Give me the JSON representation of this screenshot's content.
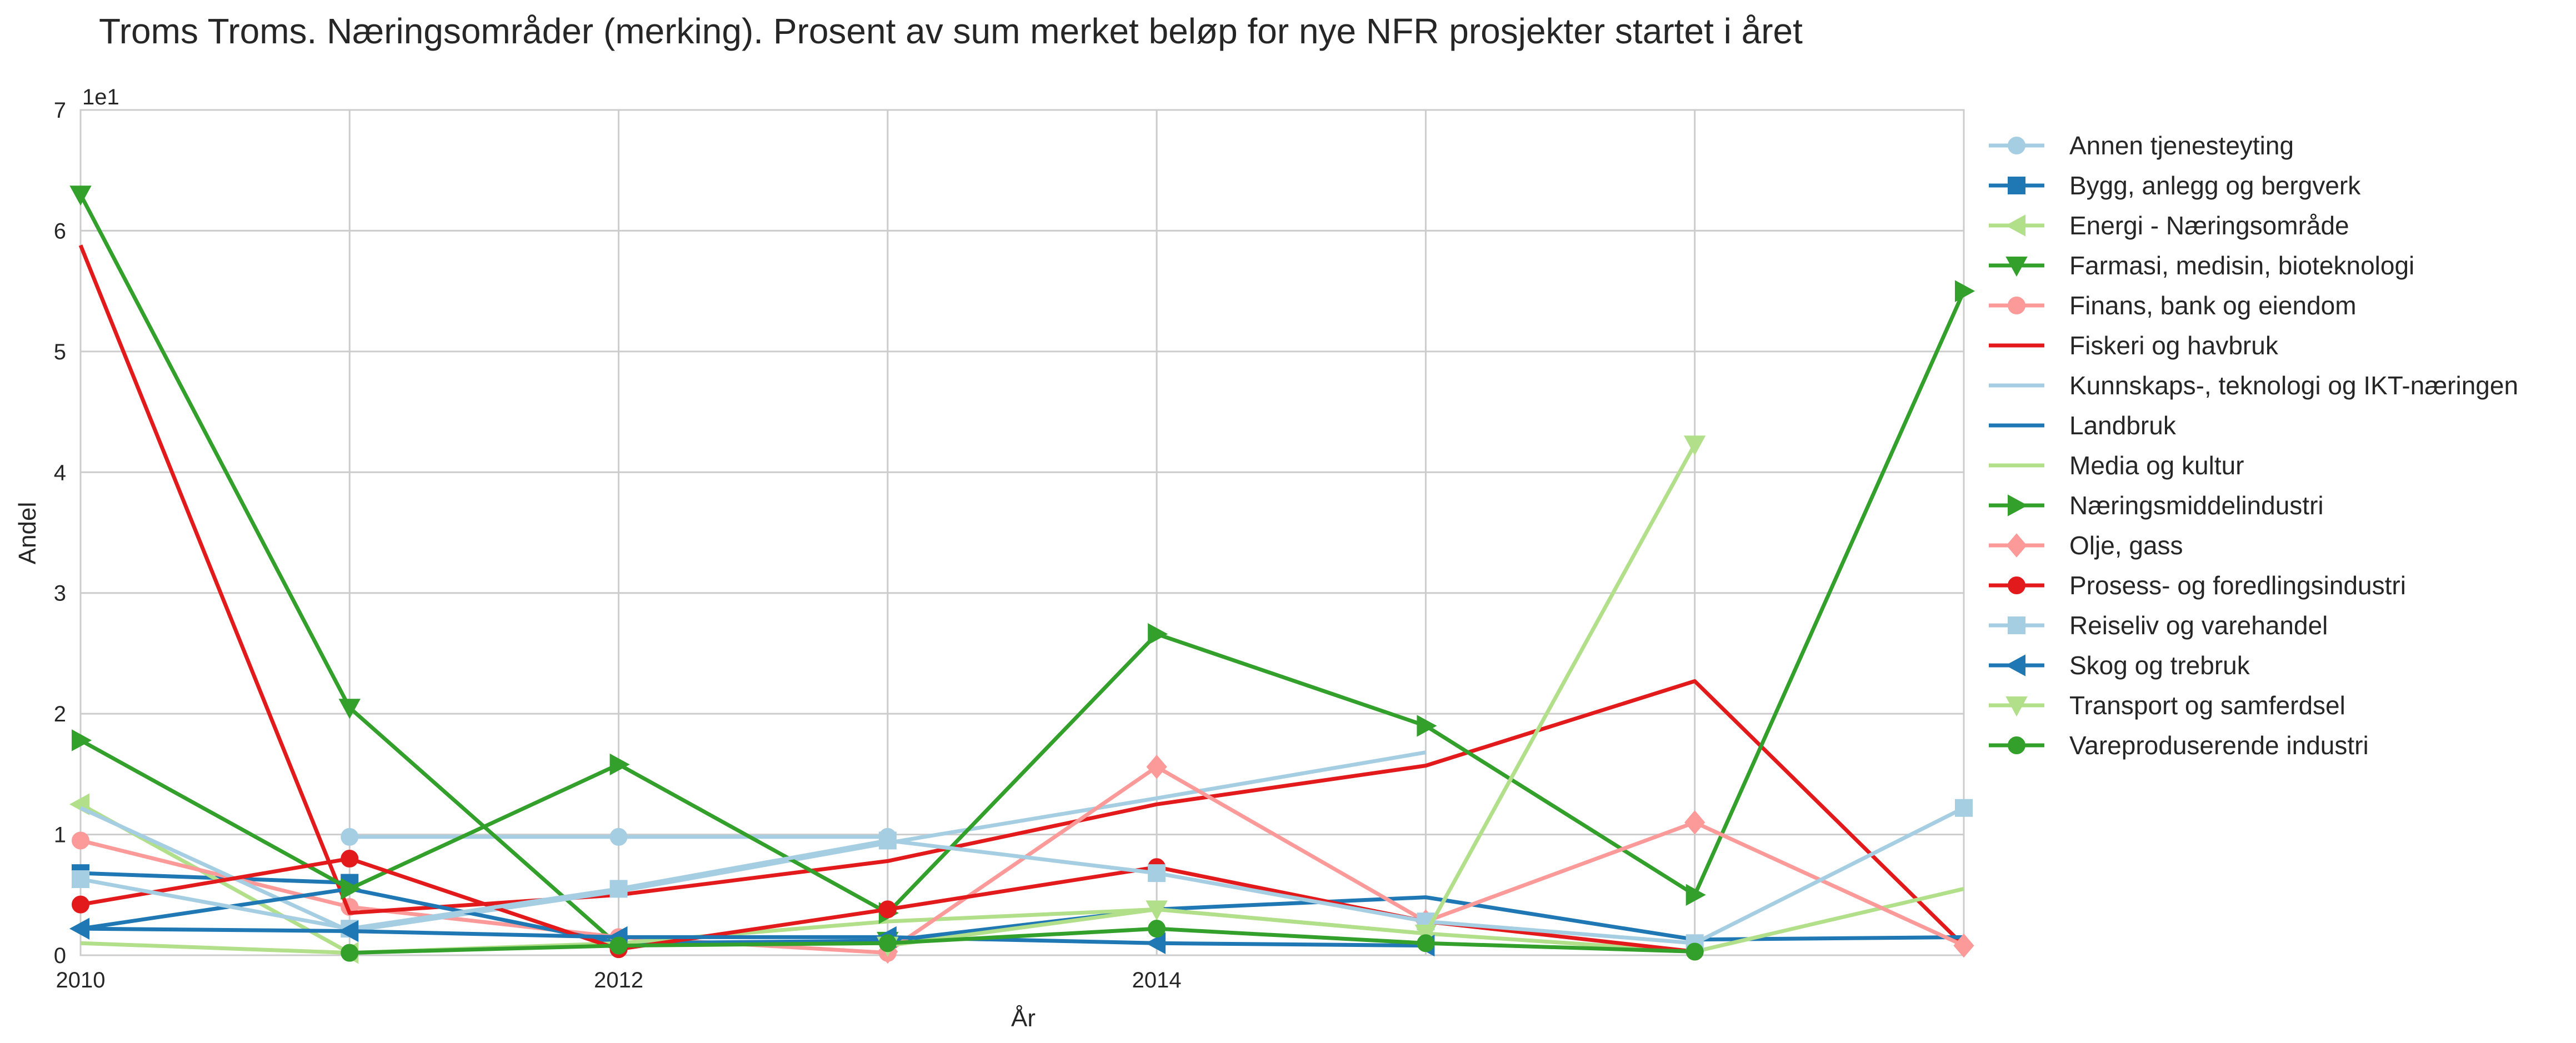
{
  "chart_data": {
    "type": "line",
    "title": "Troms Troms. Næringsområder (merking). Prosent av sum merket beløp for nye NFR prosjekter startet i året",
    "xlabel": "År",
    "ylabel": "Andel",
    "y_scale_label": "1e1",
    "xlim": [
      2010,
      2017
    ],
    "ylim": [
      0,
      7
    ],
    "x_tick_labels": [
      "2010",
      "2012",
      "2014"
    ],
    "y_tick_labels": [
      "0",
      "1",
      "2",
      "3",
      "4",
      "5",
      "6",
      "7"
    ],
    "grid": true,
    "legend_position": "outside right",
    "x": [
      2010,
      2011,
      2012,
      2013,
      2014,
      2015,
      2016,
      2017
    ],
    "series": [
      {
        "name": "Annen tjenesteyting",
        "color": "#a6cee3",
        "marker": "circle",
        "values": [
          null,
          0.98,
          0.98,
          0.98,
          null,
          null,
          null,
          null
        ]
      },
      {
        "name": "Bygg, anlegg og bergverk",
        "color": "#1f78b4",
        "marker": "square",
        "values": [
          0.68,
          0.6,
          null,
          null,
          null,
          null,
          null,
          null
        ]
      },
      {
        "name": "Energi - Næringsområde",
        "color": "#b2df8a",
        "marker": "triangle-left",
        "values": [
          1.25,
          0.02,
          null,
          null,
          null,
          null,
          null,
          null
        ]
      },
      {
        "name": "Farmasi, medisin, bioteknologi",
        "color": "#33a02c",
        "marker": "triangle-down",
        "values": [
          6.3,
          2.05,
          0.08,
          0.12,
          null,
          null,
          null,
          null
        ]
      },
      {
        "name": "Finans, bank og eiendom",
        "color": "#fb9a99",
        "marker": "circle",
        "values": [
          0.95,
          0.4,
          0.15,
          0.02,
          null,
          null,
          null,
          null
        ]
      },
      {
        "name": "Fiskeri og havbruk",
        "color": "#e31a1c",
        "marker": "none",
        "values": [
          5.88,
          0.35,
          0.5,
          0.78,
          1.25,
          1.57,
          2.27,
          0.08
        ]
      },
      {
        "name": "Kunnskaps-, teknologi og IKT-næringen",
        "color": "#a6cee3",
        "marker": "none",
        "values": [
          1.22,
          0.2,
          0.53,
          0.93,
          1.3,
          1.68,
          null,
          null
        ]
      },
      {
        "name": "Landbruk",
        "color": "#1f78b4",
        "marker": "none",
        "values": [
          0.22,
          0.55,
          0.1,
          0.12,
          0.38,
          0.48,
          0.13,
          0.15
        ]
      },
      {
        "name": "Media og kultur",
        "color": "#b2df8a",
        "marker": "none",
        "values": [
          0.1,
          0.02,
          0.1,
          0.28,
          0.38,
          0.18,
          0.03,
          0.55
        ]
      },
      {
        "name": "Næringsmiddelindustri",
        "color": "#33a02c",
        "marker": "triangle-right",
        "values": [
          1.78,
          0.55,
          1.58,
          0.35,
          2.66,
          1.9,
          0.5,
          5.5
        ]
      },
      {
        "name": "Olje, gass",
        "color": "#fb9a99",
        "marker": "diamond",
        "values": [
          null,
          null,
          null,
          0.03,
          1.56,
          0.28,
          1.1,
          0.08
        ]
      },
      {
        "name": "Prosess- og foredlingsindustri",
        "color": "#e31a1c",
        "marker": "circle",
        "values": [
          0.42,
          0.8,
          0.05,
          0.38,
          0.73,
          0.28,
          0.03,
          null
        ]
      },
      {
        "name": "Reiseliv og varehandel",
        "color": "#a6cee3",
        "marker": "square",
        "values": [
          0.63,
          0.22,
          0.55,
          0.95,
          0.68,
          0.28,
          0.1,
          1.22
        ]
      },
      {
        "name": "Skog og trebruk",
        "color": "#1f78b4",
        "marker": "triangle-left",
        "values": [
          0.22,
          0.2,
          0.15,
          0.15,
          0.1,
          0.08,
          null,
          null
        ]
      },
      {
        "name": "Transport og samferdsel",
        "color": "#b2df8a",
        "marker": "triangle-down",
        "values": [
          null,
          null,
          null,
          0.08,
          0.38,
          0.18,
          4.23,
          null
        ]
      },
      {
        "name": "Vareproduserende industri",
        "color": "#33a02c",
        "marker": "circle",
        "values": [
          null,
          0.02,
          0.08,
          0.1,
          0.22,
          0.1,
          0.03,
          null
        ]
      }
    ]
  }
}
